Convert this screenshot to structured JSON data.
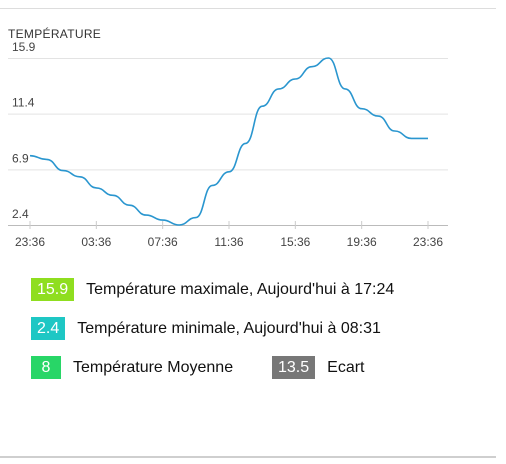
{
  "widget": {
    "title": "TEMPÉRATURE"
  },
  "chart_data": {
    "type": "line",
    "title": "TEMPÉRATURE",
    "ylim": [
      2.4,
      15.9
    ],
    "yticks": [
      "2.4",
      "6.9",
      "11.4",
      "15.9"
    ],
    "xticks": [
      "23:36",
      "03:36",
      "07:36",
      "11:36",
      "15:36",
      "19:36",
      "23:36"
    ],
    "x": [
      "23:36",
      "00:36",
      "01:36",
      "02:36",
      "03:36",
      "04:36",
      "05:36",
      "06:36",
      "07:36",
      "08:31",
      "09:36",
      "10:36",
      "11:36",
      "12:36",
      "13:36",
      "14:36",
      "15:36",
      "16:36",
      "17:24",
      "18:36",
      "19:36",
      "20:36",
      "21:36",
      "22:36",
      "23:36"
    ],
    "series": [
      {
        "color": "#2a96cf",
        "values": [
          8.0,
          7.7,
          6.8,
          6.3,
          5.4,
          4.8,
          4.0,
          3.2,
          2.8,
          2.4,
          3.0,
          5.6,
          6.7,
          9.0,
          12.0,
          13.4,
          14.2,
          15.2,
          15.9,
          13.4,
          11.8,
          11.2,
          10.0,
          9.4,
          9.4
        ]
      }
    ]
  },
  "stats": {
    "max": {
      "value": "15.9",
      "label": "Température maximale, Aujourd'hui à 17:24",
      "color": "#8fde1f"
    },
    "min": {
      "value": "2.4",
      "label": "Température minimale, Aujourd'hui à 08:31",
      "color": "#1ec7c4"
    },
    "avg": {
      "value": "8",
      "label": "Température Moyenne",
      "color": "#28d667"
    },
    "gap": {
      "value": "13.5",
      "label": "Ecart",
      "color": "#777777"
    }
  }
}
